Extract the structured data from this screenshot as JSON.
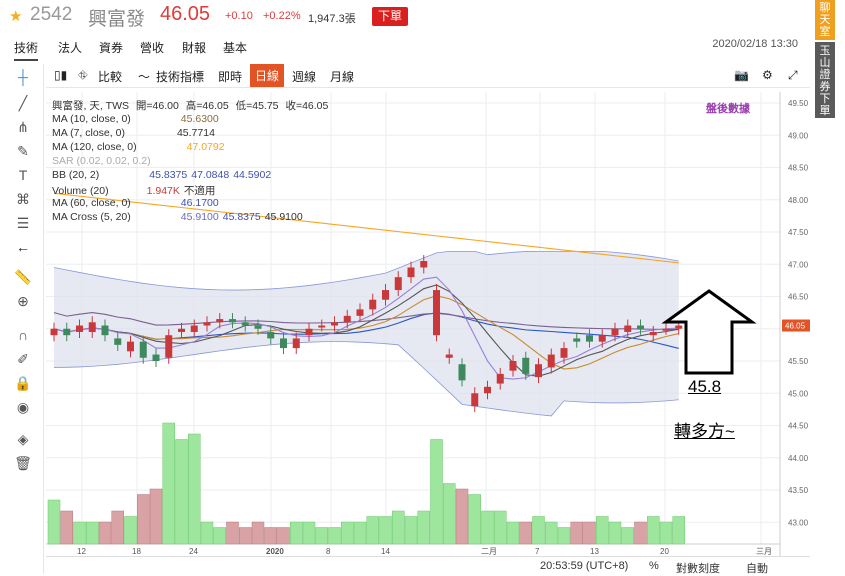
{
  "stock": {
    "code": "2542",
    "name": "興富發",
    "price": "46.05",
    "change": "+0.10",
    "change_pct": "+0.22%",
    "volume": "1,947.3張",
    "order_label": "下單"
  },
  "tabs": [
    "技術",
    "法人",
    "資券",
    "營收",
    "財報",
    "基本"
  ],
  "timestamp": "2020/02/18 13:30",
  "right_bar": {
    "chat": "聊天室",
    "broker": "玉山證券下單"
  },
  "toolbar": {
    "compare": "比較",
    "indicators": "技術指標",
    "intraday": "即時",
    "daily": "日線",
    "weekly": "週線",
    "monthly": "月線"
  },
  "legend": {
    "main": "興富發, 天, TWS",
    "open": "開=46.00",
    "high": "高=46.05",
    "low": "低=45.75",
    "close": "收=46.05",
    "ma10": "MA (10, close, 0)",
    "ma10_v": "45.6300",
    "ma7": "MA (7, close, 0)",
    "ma7_v": "45.7714",
    "ma120": "MA (120, close, 0)",
    "ma120_v": "47.0792",
    "sar": "SAR (0.02, 0.02, 0.2)",
    "bb": "BB (20, 2)",
    "bb_v1": "45.8375",
    "bb_v2": "47.0848",
    "bb_v3": "44.5902",
    "volume": "Volume (20)",
    "volume_v": "1.947K",
    "volume_na": "不適用",
    "ma60": "MA (60, close, 0)",
    "ma60_v": "46.1700",
    "macross": "MA Cross (5, 20)",
    "macross_v1": "45.9100",
    "macross_v2": "45.8375",
    "macross_v3": "45.9100"
  },
  "after_hours": "盤後數據",
  "annotation": {
    "value": "45.8",
    "text": "轉多方~"
  },
  "price_axis": [
    "49.50",
    "49.00",
    "48.50",
    "48.00",
    "47.50",
    "47.00",
    "46.50",
    "46.05",
    "45.50",
    "45.00",
    "44.50",
    "44.00",
    "43.50",
    "43.00"
  ],
  "price_tag": "46.05",
  "date_axis": [
    "12",
    "18",
    "24",
    "2020",
    "8",
    "14",
    "二月",
    "7",
    "13",
    "20",
    "三月"
  ],
  "status": {
    "time": "20:53:59 (UTC+8)",
    "pct": "%",
    "scale": "對數刻度",
    "auto": "自動"
  },
  "colors": {
    "up": "#c9393b",
    "down": "#3e8a5e",
    "ma120": "#f5a623",
    "accent": "#e25425"
  }
}
